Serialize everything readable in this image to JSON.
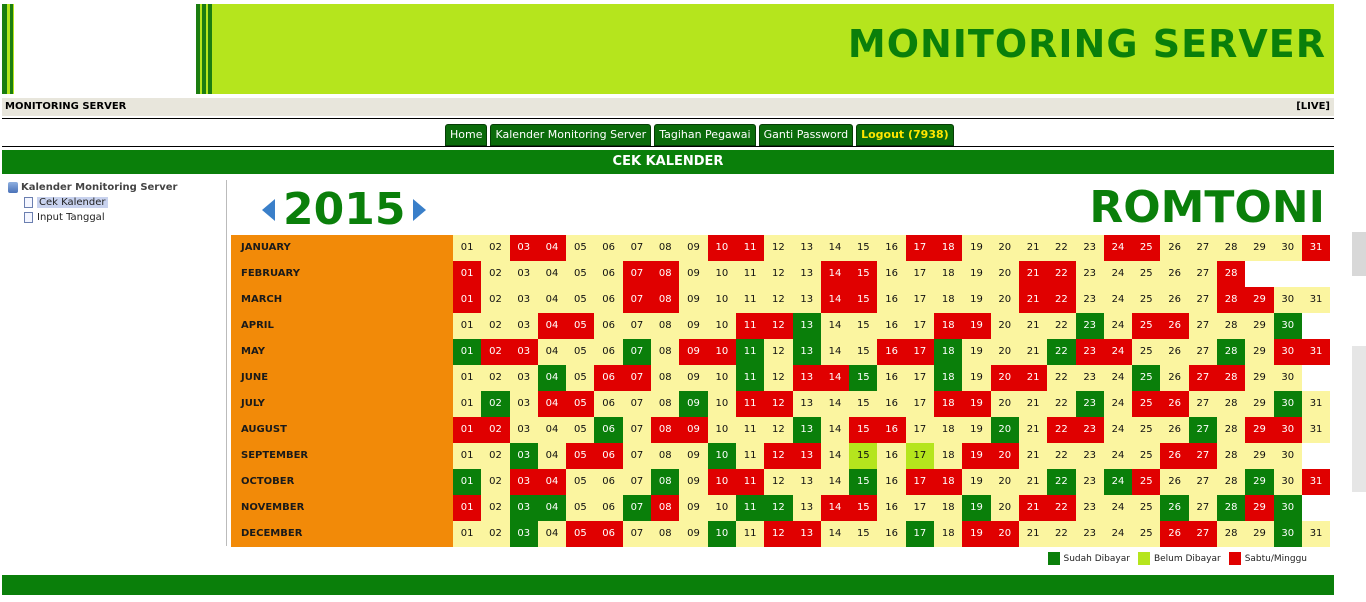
{
  "header": {
    "title": "MONITORING SERVER",
    "subbar_left": "MONITORING SERVER",
    "subbar_right": "[LIVE]"
  },
  "nav": [
    {
      "label": "Home",
      "name": "tab-home"
    },
    {
      "label": "Kalender Monitoring Server",
      "name": "tab-kalender"
    },
    {
      "label": "Tagihan Pegawai",
      "name": "tab-tagihan"
    },
    {
      "label": "Ganti Password",
      "name": "tab-ganti-password"
    },
    {
      "label": "Logout (7938)",
      "name": "tab-logout"
    }
  ],
  "section_title": "CEK KALENDER",
  "sidebar": {
    "root": "Kalender Monitoring Server",
    "items": [
      {
        "label": "Cek Kalender",
        "selected": true
      },
      {
        "label": "Input Tanggal",
        "selected": false
      }
    ]
  },
  "calendar": {
    "year": "2015",
    "name": "ROMTONI",
    "months": [
      {
        "name": "JANUARY",
        "days": 31,
        "sabtu": [
          3,
          4,
          10,
          11,
          17,
          18,
          24,
          25,
          31
        ],
        "sudah": [],
        "belum": []
      },
      {
        "name": "FEBRUARY",
        "days": 28,
        "sabtu": [
          1,
          7,
          8,
          14,
          15,
          21,
          22,
          28
        ],
        "sudah": [],
        "belum": []
      },
      {
        "name": "MARCH",
        "days": 31,
        "sabtu": [
          1,
          7,
          8,
          14,
          15,
          21,
          22,
          28,
          29
        ],
        "sudah": [],
        "belum": []
      },
      {
        "name": "APRIL",
        "days": 30,
        "sabtu": [
          4,
          5,
          11,
          12,
          18,
          19,
          25,
          26
        ],
        "sudah": [
          13,
          23,
          30
        ],
        "belum": []
      },
      {
        "name": "MAY",
        "days": 31,
        "sabtu": [
          2,
          3,
          9,
          10,
          16,
          17,
          23,
          24,
          30,
          31
        ],
        "sudah": [
          1,
          7,
          11,
          13,
          18,
          22,
          28
        ],
        "belum": []
      },
      {
        "name": "JUNE",
        "days": 30,
        "sabtu": [
          6,
          7,
          13,
          14,
          20,
          21,
          27,
          28
        ],
        "sudah": [
          4,
          11,
          15,
          18,
          25
        ],
        "belum": []
      },
      {
        "name": "JULY",
        "days": 31,
        "sabtu": [
          4,
          5,
          11,
          12,
          18,
          19,
          25,
          26
        ],
        "sudah": [
          2,
          9,
          23,
          30
        ],
        "belum": []
      },
      {
        "name": "AUGUST",
        "days": 31,
        "sabtu": [
          1,
          2,
          8,
          9,
          15,
          16,
          22,
          23,
          29,
          30
        ],
        "sudah": [
          6,
          13,
          20,
          27
        ],
        "belum": []
      },
      {
        "name": "SEPTEMBER",
        "days": 30,
        "sabtu": [
          5,
          6,
          12,
          13,
          19,
          20,
          26,
          27
        ],
        "sudah": [
          3,
          10
        ],
        "belum": [
          15,
          17
        ]
      },
      {
        "name": "OCTOBER",
        "days": 31,
        "sabtu": [
          3,
          4,
          10,
          11,
          17,
          18,
          25,
          31
        ],
        "sudah": [
          1,
          8,
          15,
          22,
          24,
          29
        ],
        "belum": []
      },
      {
        "name": "NOVEMBER",
        "days": 30,
        "sabtu": [
          1,
          8,
          14,
          15,
          21,
          22,
          29
        ],
        "sudah": [
          3,
          4,
          7,
          11,
          12,
          19,
          26,
          28,
          30
        ],
        "belum": []
      },
      {
        "name": "DECEMBER",
        "days": 31,
        "sabtu": [
          5,
          6,
          12,
          13,
          19,
          20,
          26,
          27
        ],
        "sudah": [
          3,
          10,
          17,
          30
        ],
        "belum": []
      }
    ]
  },
  "legend": {
    "sudah": "Sudah Dibayar",
    "belum": "Belum Dibayar",
    "sabtu": "Sabtu/Minggu"
  },
  "colors": {
    "brand_green": "#0a7f0a",
    "lime": "#b5e51d",
    "red": "#e00000",
    "pale_yellow": "#fbf5a0",
    "orange": "#f28a08"
  }
}
